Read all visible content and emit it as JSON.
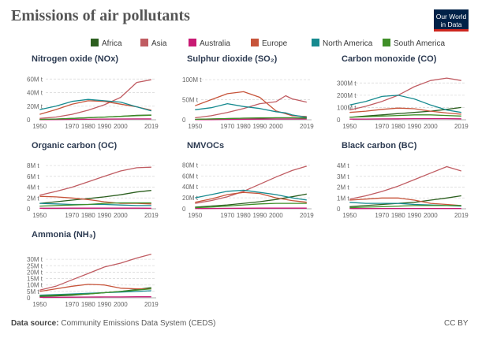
{
  "header": {
    "title": "Emissions of air pollutants",
    "logo_line1": "Our World",
    "logo_line2": "in Data"
  },
  "footer": {
    "source_label": "Data source:",
    "source_text": "Community Emissions Data System (CEDS)",
    "license": "CC BY"
  },
  "colors": {
    "Africa": "#2c5f1f",
    "Asia": "#c05c62",
    "Australia": "#c81a74",
    "Europe": "#c7543a",
    "North America": "#168a8f",
    "South America": "#3f8f28"
  },
  "chart_data": [
    {
      "type": "line",
      "title": "Nitrogen oxide (NOx)",
      "x": [
        1950,
        1960,
        1970,
        1980,
        1990,
        2000,
        2010,
        2019
      ],
      "xticks": [
        "1950",
        "1970",
        "1980",
        "1990",
        "2000",
        "2019"
      ],
      "yticks": [
        "0",
        "20M t",
        "40M t",
        "60M t"
      ],
      "ylim": [
        0,
        65
      ],
      "series": [
        {
          "name": "Africa",
          "values": [
            0.5,
            1,
            2,
            3,
            4,
            5,
            6.5,
            7
          ]
        },
        {
          "name": "Asia",
          "values": [
            2,
            4,
            8,
            14,
            22,
            33,
            55,
            59
          ]
        },
        {
          "name": "Australia",
          "values": [
            0.2,
            0.4,
            0.6,
            0.8,
            1,
            1.2,
            1.3,
            1.3
          ]
        },
        {
          "name": "Europe",
          "values": [
            8,
            15,
            23,
            28,
            27,
            23,
            19,
            14
          ]
        },
        {
          "name": "North America",
          "values": [
            15,
            20,
            27,
            30,
            28,
            26,
            19,
            13
          ]
        },
        {
          "name": "South America",
          "values": [
            0.5,
            1,
            2,
            3,
            4,
            5,
            6,
            6.5
          ]
        }
      ]
    },
    {
      "type": "line",
      "title": "Sulphur dioxide (SO₂)",
      "x": [
        1950,
        1960,
        1970,
        1980,
        1990,
        2000,
        2006,
        2010,
        2019
      ],
      "xticks": [
        "1950",
        "1970",
        "1980",
        "1990",
        "2000",
        "2019"
      ],
      "yticks": [
        "0",
        "50M t",
        "100M t"
      ],
      "ylim": [
        0,
        110
      ],
      "series": [
        {
          "name": "Africa",
          "values": [
            1,
            2,
            3,
            4,
            4,
            5,
            5,
            5,
            5
          ]
        },
        {
          "name": "Asia",
          "values": [
            5,
            10,
            18,
            28,
            40,
            45,
            60,
            52,
            44
          ]
        },
        {
          "name": "Australia",
          "values": [
            0.2,
            0.4,
            1,
            1.4,
            1.5,
            2,
            2,
            2,
            2
          ]
        },
        {
          "name": "Europe",
          "values": [
            35,
            50,
            65,
            70,
            56,
            22,
            15,
            10,
            8
          ]
        },
        {
          "name": "North America",
          "values": [
            25,
            30,
            40,
            33,
            28,
            20,
            17,
            12,
            6
          ]
        },
        {
          "name": "South America",
          "values": [
            1,
            2,
            3,
            4,
            5,
            5,
            5,
            5,
            4
          ]
        }
      ]
    },
    {
      "type": "line",
      "title": "Carbon monoxide (CO)",
      "x": [
        1950,
        1960,
        1970,
        1980,
        1990,
        2000,
        2010,
        2019
      ],
      "xticks": [
        "1950",
        "1970",
        "1980",
        "1990",
        "2000",
        "2019"
      ],
      "yticks": [
        "0",
        "100M t",
        "200M t",
        "300M t"
      ],
      "ylim": [
        0,
        360
      ],
      "series": [
        {
          "name": "Africa",
          "values": [
            20,
            30,
            40,
            50,
            60,
            70,
            85,
            100
          ]
        },
        {
          "name": "Asia",
          "values": [
            80,
            110,
            150,
            200,
            270,
            320,
            340,
            320
          ]
        },
        {
          "name": "Australia",
          "values": [
            5,
            6,
            7,
            8,
            9,
            9,
            9,
            8
          ]
        },
        {
          "name": "Europe",
          "values": [
            60,
            70,
            85,
            95,
            90,
            70,
            55,
            45
          ]
        },
        {
          "name": "North America",
          "values": [
            120,
            150,
            190,
            200,
            170,
            120,
            80,
            60
          ]
        },
        {
          "name": "South America",
          "values": [
            20,
            25,
            30,
            35,
            40,
            40,
            35,
            30
          ]
        }
      ]
    },
    {
      "type": "line",
      "title": "Organic carbon (OC)",
      "x": [
        1950,
        1960,
        1970,
        1980,
        1990,
        2000,
        2010,
        2019
      ],
      "xticks": [
        "1950",
        "1970",
        "1980",
        "1990",
        "2000",
        "2019"
      ],
      "yticks": [
        "0",
        "2M t",
        "4M t",
        "6M t",
        "8M t"
      ],
      "ylim": [
        0,
        8.6
      ],
      "series": [
        {
          "name": "Africa",
          "values": [
            1,
            1.3,
            1.6,
            1.9,
            2.2,
            2.6,
            3.1,
            3.4
          ]
        },
        {
          "name": "Asia",
          "values": [
            2.5,
            3.2,
            4,
            5,
            6,
            7,
            7.6,
            7.7
          ]
        },
        {
          "name": "Australia",
          "values": [
            0.1,
            0.1,
            0.12,
            0.12,
            0.12,
            0.12,
            0.11,
            0.1
          ]
        },
        {
          "name": "Europe",
          "values": [
            2.3,
            2.2,
            2,
            1.7,
            1.3,
            1,
            1,
            0.9
          ]
        },
        {
          "name": "North America",
          "values": [
            1,
            0.9,
            0.8,
            0.8,
            0.8,
            0.7,
            0.6,
            0.6
          ]
        },
        {
          "name": "South America",
          "values": [
            0.5,
            0.6,
            0.7,
            0.8,
            1,
            1.1,
            1.1,
            1.1
          ]
        }
      ]
    },
    {
      "type": "line",
      "title": "NMVOCs",
      "x": [
        1950,
        1960,
        1970,
        1980,
        1990,
        2000,
        2010,
        2019
      ],
      "xticks": [
        "1950",
        "1970",
        "1980",
        "1990",
        "2000",
        "2019"
      ],
      "yticks": [
        "0",
        "20M t",
        "40M t",
        "60M t",
        "80M t"
      ],
      "ylim": [
        0,
        85
      ],
      "series": [
        {
          "name": "Africa",
          "values": [
            3,
            5,
            7,
            10,
            13,
            17,
            22,
            27
          ]
        },
        {
          "name": "Asia",
          "values": [
            10,
            15,
            22,
            32,
            45,
            58,
            70,
            78
          ]
        },
        {
          "name": "Australia",
          "values": [
            0.4,
            0.6,
            0.8,
            1,
            1.1,
            1.2,
            1.2,
            1.2
          ]
        },
        {
          "name": "Europe",
          "values": [
            12,
            18,
            26,
            30,
            28,
            20,
            15,
            12
          ]
        },
        {
          "name": "North America",
          "values": [
            20,
            26,
            32,
            34,
            30,
            26,
            20,
            16
          ]
        },
        {
          "name": "South America",
          "values": [
            2,
            3,
            5,
            7,
            9,
            10,
            10,
            10
          ]
        }
      ]
    },
    {
      "type": "line",
      "title": "Black carbon (BC)",
      "x": [
        1950,
        1960,
        1970,
        1980,
        1990,
        2000,
        2010,
        2019
      ],
      "xticks": [
        "1950",
        "1970",
        "1980",
        "1990",
        "2000",
        "2019"
      ],
      "yticks": [
        "0",
        "1M t",
        "2M t",
        "3M t",
        "4M t"
      ],
      "ylim": [
        0,
        4.3
      ],
      "series": [
        {
          "name": "Africa",
          "values": [
            0.2,
            0.3,
            0.4,
            0.5,
            0.6,
            0.8,
            1,
            1.2
          ]
        },
        {
          "name": "Asia",
          "values": [
            0.9,
            1.2,
            1.6,
            2.1,
            2.7,
            3.3,
            3.9,
            3.5
          ]
        },
        {
          "name": "Australia",
          "values": [
            0.02,
            0.02,
            0.03,
            0.03,
            0.03,
            0.03,
            0.03,
            0.03
          ]
        },
        {
          "name": "Europe",
          "values": [
            0.8,
            0.9,
            1,
            1,
            0.8,
            0.5,
            0.4,
            0.3
          ]
        },
        {
          "name": "North America",
          "values": [
            0.6,
            0.5,
            0.5,
            0.5,
            0.4,
            0.35,
            0.3,
            0.25
          ]
        },
        {
          "name": "South America",
          "values": [
            0.1,
            0.15,
            0.2,
            0.25,
            0.3,
            0.3,
            0.3,
            0.3
          ]
        }
      ]
    },
    {
      "type": "line",
      "title": "Ammonia (NH₃)",
      "x": [
        1950,
        1960,
        1970,
        1980,
        1990,
        2000,
        2010,
        2019
      ],
      "xticks": [
        "1950",
        "1970",
        "1980",
        "1990",
        "2000",
        "2019"
      ],
      "yticks": [
        "0",
        "5M t",
        "10M t",
        "15M t",
        "20M t",
        "25M t",
        "30M t"
      ],
      "ylim": [
        0,
        35
      ],
      "series": [
        {
          "name": "Africa",
          "values": [
            1,
            1.5,
            2,
            3,
            4,
            5,
            6.5,
            8
          ]
        },
        {
          "name": "Asia",
          "values": [
            6,
            9,
            14,
            19,
            24,
            27,
            31,
            34
          ]
        },
        {
          "name": "Australia",
          "values": [
            0.3,
            0.4,
            0.5,
            0.6,
            0.7,
            0.7,
            0.8,
            0.8
          ]
        },
        {
          "name": "Europe",
          "values": [
            5,
            7,
            9,
            10.5,
            10,
            7.5,
            7,
            7
          ]
        },
        {
          "name": "North America",
          "values": [
            2,
            2.5,
            3,
            3.5,
            4,
            4.5,
            5,
            5.5
          ]
        },
        {
          "name": "South America",
          "values": [
            1.5,
            2,
            2.5,
            3,
            4,
            5,
            6,
            7
          ]
        }
      ]
    }
  ]
}
